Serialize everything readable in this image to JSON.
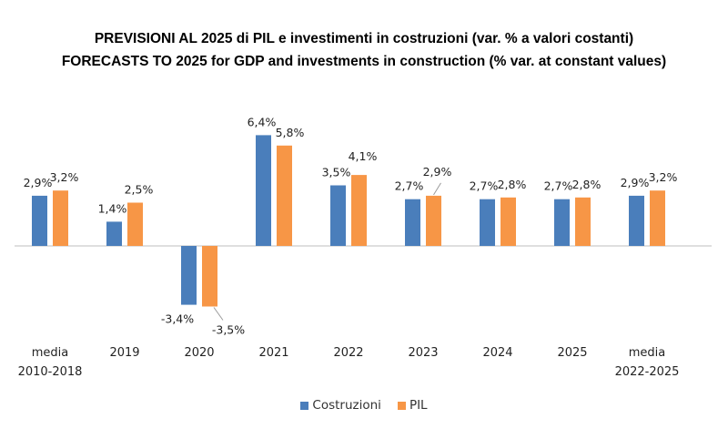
{
  "chart_data": {
    "type": "bar",
    "title": "PREVISIONI AL 2025 di PIL e investimenti in costruzioni (var. % a valori costanti)",
    "subtitle": "FORECASTS TO 2025 for GDP and investments in construction (% var. at constant values)",
    "categories": [
      [
        "media",
        "2010-2018"
      ],
      [
        "2019"
      ],
      [
        "2020"
      ],
      [
        "2021"
      ],
      [
        "2022"
      ],
      [
        "2023"
      ],
      [
        "2024"
      ],
      [
        "2025"
      ],
      [
        "media",
        "2022-2025"
      ]
    ],
    "series": [
      {
        "name": "Costruzioni",
        "color": "#4a7ebb",
        "values": [
          2.9,
          1.4,
          -3.4,
          6.4,
          3.5,
          2.7,
          2.7,
          2.7,
          2.9
        ],
        "labels": [
          "2,9%",
          "1,4%",
          "-3,4%",
          "6,4%",
          "3,5%",
          "2,7%",
          "2,7%",
          "2,7%",
          "2,9%"
        ]
      },
      {
        "name": "PIL",
        "color": "#f79646",
        "values": [
          3.2,
          2.5,
          -3.5,
          5.8,
          4.1,
          2.9,
          2.8,
          2.8,
          3.2
        ],
        "labels": [
          "3,2%",
          "2,5%",
          "-3,5%",
          "5,8%",
          "4,1%",
          "2,9%",
          "2,8%",
          "2,8%",
          "3,2%"
        ]
      }
    ],
    "xlabel": "",
    "ylabel": "",
    "grid": false,
    "legend_position": "bottom"
  }
}
